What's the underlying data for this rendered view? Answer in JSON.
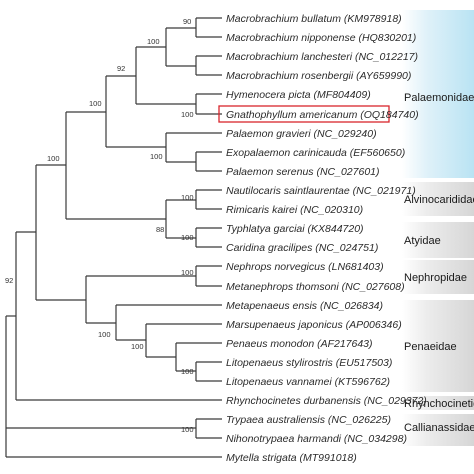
{
  "figure": {
    "highlight_color": "#d9252c",
    "line_color": "#3a3a3a",
    "highlighted_taxon": "Gnathophyllum americanum (OQ184740)"
  },
  "taxa": [
    "Macrobrachium bullatum (KM978918)",
    "Macrobrachium nipponense (HQ830201)",
    "Macrobrachium lanchesteri (NC_012217)",
    "Macrobrachium rosenbergii (AY659990)",
    "Hymenocera picta (MF804409)",
    "Gnathophyllum americanum (OQ184740)",
    "Palaemon gravieri (NC_029240)",
    "Exopalaemon carinicauda (EF560650)",
    "Palaemon serenus (NC_027601)",
    "Nautilocaris saintlaurentae (NC_021971)",
    "Rimicaris kairei (NC_020310)",
    "Typhlatya garciai (KX844720)",
    "Caridina gracilipes (NC_024751)",
    "Nephrops norvegicus (LN681403)",
    "Metanephrops thomsoni (NC_027608)",
    "Metapenaeus ensis (NC_026834)",
    "Marsupenaeus japonicus (AP006346)",
    "Penaeus monodon (AF217643)",
    "Litopenaeus stylirostris (EU517503)",
    "Litopenaeus vannamei (KT596762)",
    "Rhynchocinetes durbanensis (NC_029372)",
    "Trypaea australiensis (NC_026225)",
    "Nihonotrypaea harmandi (NC_034298)",
    "Mytella strigata (MT991018)"
  ],
  "bootstrap": {
    "macro_bn": "90",
    "macro_all": "100",
    "macro_hym": "92",
    "hym_gna": "100",
    "palaemonidae": "100",
    "palaemon": "100",
    "caridea": "100",
    "alvino": "100",
    "atyidae": "100",
    "atyid_alvino": "88",
    "root": "92",
    "nephrop": "100",
    "penaeid": "100",
    "penaeid_inner": "100",
    "penaeid_litopenaeus": "100",
    "callianassidae": "100"
  },
  "families": [
    {
      "name": "Palaemonidae",
      "color": "#cdeaf6"
    },
    {
      "name": "Alvinocarididae",
      "color": "#e4e4e4"
    },
    {
      "name": "Atyidae",
      "color": "#e4e4e4"
    },
    {
      "name": "Nephropidae",
      "color": "#e4e4e4"
    },
    {
      "name": "Penaeidae",
      "color": "#e4e4e4"
    },
    {
      "name": "Rhynchocinetidae",
      "color": "#e4e4e4"
    },
    {
      "name": "Callianassidae",
      "color": "#e4e4e4"
    }
  ]
}
